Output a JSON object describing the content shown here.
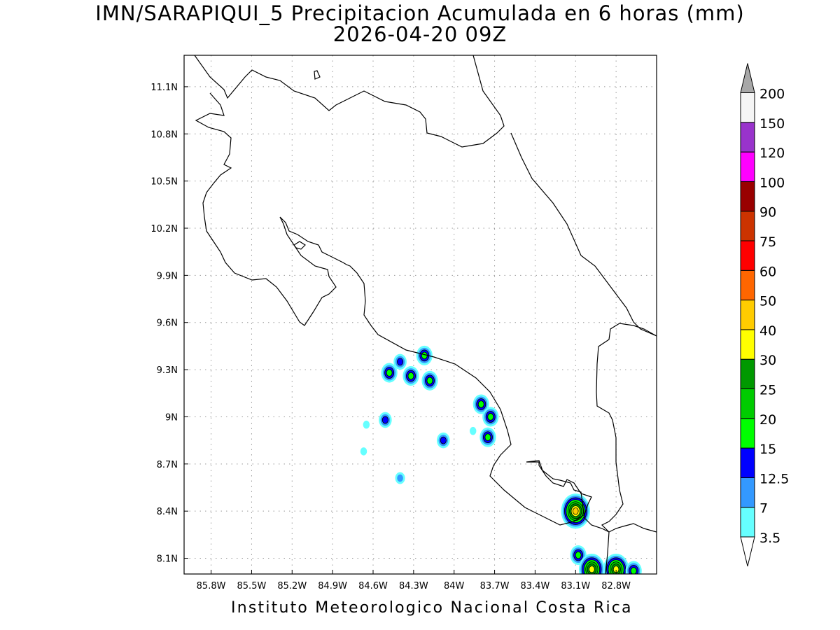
{
  "title": {
    "line1": "IMN/SARAPIQUI_5 Precipitacion Acumulada en 6 horas (mm)",
    "line2": "2026-04-20 09Z"
  },
  "footer": "Instituto Meteorologico Nacional Costa Rica",
  "axes": {
    "lon_ticks": [
      -85.8,
      -85.5,
      -85.2,
      -84.9,
      -84.6,
      -84.3,
      -84.0,
      -83.7,
      -83.4,
      -83.1,
      -82.8
    ],
    "lon_labels": [
      "85.8W",
      "85.5W",
      "85.2W",
      "84.9W",
      "84.6W",
      "84.3W",
      "84W",
      "83.7W",
      "83.4W",
      "83.1W",
      "82.8W"
    ],
    "lat_ticks": [
      8.1,
      8.4,
      8.7,
      9.0,
      9.3,
      9.6,
      9.9,
      10.2,
      10.5,
      10.8,
      11.1
    ],
    "lat_labels": [
      "8.1N",
      "8.4N",
      "8.7N",
      "9N",
      "9.3N",
      "9.6N",
      "9.9N",
      "10.2N",
      "10.5N",
      "10.8N",
      "11.1N"
    ],
    "lon_range": [
      -86.0,
      -82.5
    ],
    "lat_range": [
      8.0,
      11.3
    ],
    "grid": "dotted"
  },
  "legend": {
    "levels": [
      "3.5",
      "7",
      "12.5",
      "15",
      "20",
      "25",
      "30",
      "40",
      "50",
      "60",
      "75",
      "90",
      "100",
      "120",
      "150",
      "200"
    ],
    "colors": [
      "#66ffff",
      "#3399ff",
      "#0000ff",
      "#00ff00",
      "#00cc00",
      "#009900",
      "#ffff00",
      "#ffcc00",
      "#ff6600",
      "#ff0000",
      "#cc3300",
      "#990000",
      "#ff00ff",
      "#9933cc",
      "#f5f5f5"
    ],
    "under_color": "#ffffff",
    "over_color": "#a8a8a8"
  },
  "precip_cells": [
    {
      "lon": -84.48,
      "lat": 9.28,
      "level": 3
    },
    {
      "lon": -84.4,
      "lat": 9.35,
      "level": 2
    },
    {
      "lon": -84.32,
      "lat": 9.26,
      "level": 3
    },
    {
      "lon": -84.22,
      "lat": 9.39,
      "level": 3
    },
    {
      "lon": -84.18,
      "lat": 9.23,
      "level": 3
    },
    {
      "lon": -84.51,
      "lat": 8.98,
      "level": 2
    },
    {
      "lon": -84.08,
      "lat": 8.85,
      "level": 2
    },
    {
      "lon": -84.4,
      "lat": 8.61,
      "level": 1
    },
    {
      "lon": -84.67,
      "lat": 8.78,
      "level": 0
    },
    {
      "lon": -84.65,
      "lat": 8.95,
      "level": 0
    },
    {
      "lon": -83.8,
      "lat": 9.08,
      "level": 3
    },
    {
      "lon": -83.73,
      "lat": 9.0,
      "level": 3
    },
    {
      "lon": -83.75,
      "lat": 8.87,
      "level": 3
    },
    {
      "lon": -83.86,
      "lat": 8.91,
      "level": 0
    },
    {
      "lon": -83.1,
      "lat": 8.4,
      "level": 7
    },
    {
      "lon": -83.08,
      "lat": 8.12,
      "level": 3
    },
    {
      "lon": -82.98,
      "lat": 8.03,
      "level": 6
    },
    {
      "lon": -82.8,
      "lat": 8.03,
      "level": 6
    },
    {
      "lon": -82.67,
      "lat": 8.02,
      "level": 3
    }
  ]
}
